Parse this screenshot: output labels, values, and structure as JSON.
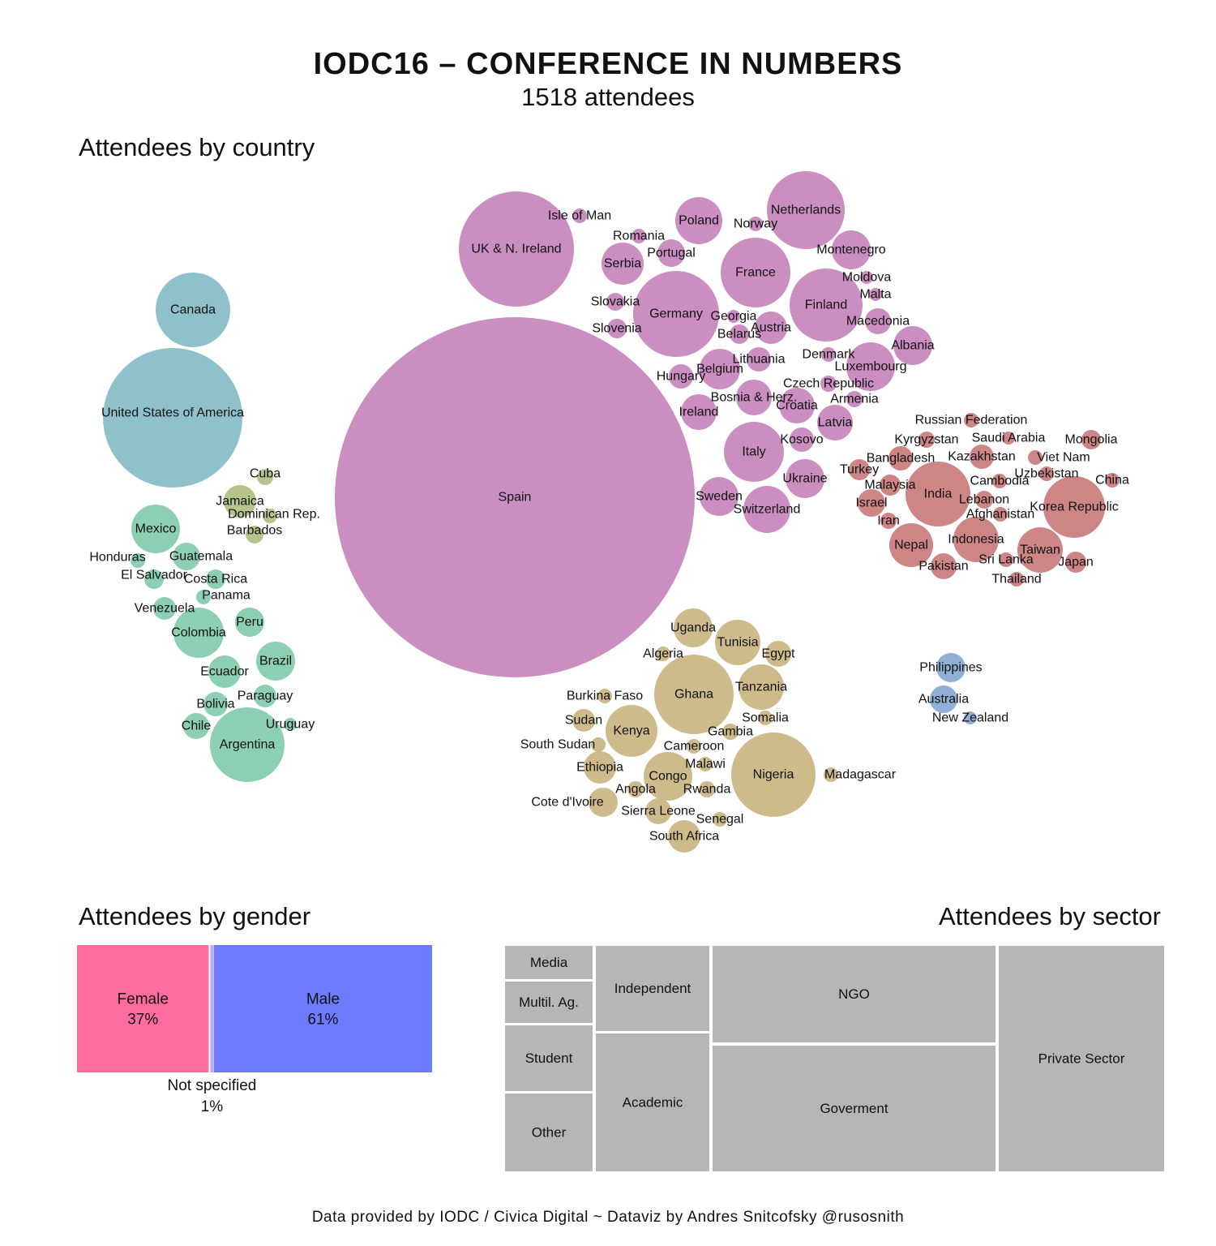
{
  "header": {
    "title": "IODC16 – CONFERENCE IN NUMBERS",
    "subtitle": "1518 attendees"
  },
  "sections": {
    "country": "Attendees by country",
    "gender": "Attendees by gender",
    "sector": "Attendees by sector"
  },
  "footer": "Data provided by IODC / Civica Digital ~ Dataviz by Andres Snitcofsky @rusosnith",
  "colors": {
    "north_america": "#8fc1cb",
    "latin_america": "#8dcfb2",
    "caribbean": "#b5c48a",
    "europe": "#cb8ec0",
    "asia": "#cd8585",
    "africa": "#cebb8b",
    "oceania": "#8fafd4",
    "female": "#fe6ca0",
    "male": "#6d7bfe",
    "not_specified": "#b8a8ff",
    "sector": "#b6b6b6"
  },
  "chart_data": [
    {
      "type": "bubble",
      "title": "Attendees by country",
      "groups": [
        {
          "name": "north_america",
          "countries": [
            "Canada",
            "United States of America"
          ]
        },
        {
          "name": "caribbean",
          "countries": [
            "Cuba",
            "Jamaica",
            "Dominican Rep.",
            "Barbados"
          ]
        },
        {
          "name": "latin_america",
          "countries": [
            "Mexico",
            "Honduras",
            "Guatemala",
            "El Salvador",
            "Costa Rica",
            "Panama",
            "Venezuela",
            "Peru",
            "Colombia",
            "Brazil",
            "Ecuador",
            "Paraguay",
            "Bolivia",
            "Chile",
            "Uruguay",
            "Argentina"
          ]
        },
        {
          "name": "europe",
          "countries": [
            "Spain",
            "UK & N. Ireland",
            "Isle of Man",
            "Romania",
            "Portugal",
            "Serbia",
            "Poland",
            "Norway",
            "Netherlands",
            "Montenegro",
            "France",
            "Moldova",
            "Malta",
            "Finland",
            "Slovakia",
            "Germany",
            "Georgia",
            "Slovenia",
            "Belarus",
            "Austria",
            "Macedonia",
            "Albania",
            "Denmark",
            "Lithuania",
            "Luxembourg",
            "Hungary",
            "Belgium",
            "Czech Republic",
            "Bosnia & Herz.",
            "Armenia",
            "Croatia",
            "Ireland",
            "Latvia",
            "Kosovo",
            "Italy",
            "Ukraine",
            "Sweden",
            "Switzerland"
          ]
        },
        {
          "name": "asia",
          "countries": [
            "Russian Federation",
            "Kyrgyzstan",
            "Saudi Arabia",
            "Mongolia",
            "Bangladesh",
            "Kazakhstan",
            "Viet Nam",
            "Turkey",
            "Uzbekistan",
            "Cambodia",
            "China",
            "Malaysia",
            "India",
            "Lebanon",
            "Israel",
            "Korea Republic",
            "Afghanistan",
            "Iran",
            "Indonesia",
            "Nepal",
            "Taiwan",
            "Sri Lanka",
            "Pakistan",
            "Japan",
            "Thailand"
          ]
        },
        {
          "name": "africa",
          "countries": [
            "Uganda",
            "Tunisia",
            "Algeria",
            "Egypt",
            "Ghana",
            "Tanzania",
            "Burkina Faso",
            "Somalia",
            "Sudan",
            "Kenya",
            "Gambia",
            "South Sudan",
            "Cameroon",
            "Malawi",
            "Ethiopia",
            "Nigeria",
            "Madagascar",
            "Congo",
            "Angola",
            "Rwanda",
            "Cote d'Ivoire",
            "Sierra Leone",
            "Senegal",
            "South Africa"
          ]
        },
        {
          "name": "oceania",
          "countries": [
            "Philippines",
            "Australia",
            "New Zealand"
          ]
        }
      ],
      "relative_size": {
        "Spain": 1000,
        "United States of America": 148,
        "Canada": 43,
        "UK & N. Ireland": 105,
        "Netherlands": 48,
        "Germany": 56,
        "France": 36,
        "Finland": 40,
        "Italy": 28,
        "Nigeria": 51,
        "Ghana": 46,
        "India": 32,
        "Korea Republic": 29,
        "Argentina": 43,
        "Poland": 17,
        "Serbia": 14,
        "Montenegro": 13,
        "Luxembourg": 17,
        "Albania": 12,
        "Belgium": 12,
        "Switzerland": 17,
        "Ukraine": 12,
        "Sweden": 11,
        "Latvia": 10,
        "Croatia": 10,
        "Bosnia & Herz.": 10,
        "Lithuania": 5,
        "Austria": 8,
        "Macedonia": 5,
        "Portugal": 6,
        "Ireland": 9,
        "Kosovo": 5,
        "Hungary": 4,
        "Armenia": 3,
        "Czech Republic": 2,
        "Slovakia": 3,
        "Slovenia": 3,
        "Georgia": 2,
        "Belarus": 3,
        "Norway": 2,
        "Isle of Man": 2,
        "Romania": 2,
        "Moldova": 1,
        "Malta": 2,
        "Denmark": 2,
        "Mexico": 18,
        "Colombia": 19,
        "Brazil": 13,
        "Peru": 7,
        "Ecuador": 8,
        "Paraguay": 4,
        "Bolivia": 5,
        "Chile": 6,
        "Uruguay": 2,
        "Guatemala": 6,
        "Costa Rica": 3,
        "Honduras": 2,
        "El Salvador": 3,
        "Panama": 2,
        "Venezuela": 5,
        "Jamaica": 8,
        "Cuba": 2,
        "Dominican Rep.": 2,
        "Barbados": 3,
        "Indonesia": 15,
        "Taiwan": 15,
        "Nepal": 14,
        "Pakistan": 5,
        "Japan": 3,
        "Sri Lanka": 2,
        "Thailand": 2,
        "Bangladesh": 5,
        "Kazakhstan": 5,
        "Mongolia": 3,
        "Russian Federation": 2,
        "Kyrgyzstan": 2,
        "Saudi Arabia": 2,
        "Viet Nam": 2,
        "Uzbekistan": 2,
        "Cambodia": 2,
        "China": 2,
        "Malaysia": 3,
        "Turkey": 4,
        "Lebanon": 2,
        "Israel": 5,
        "Afghanistan": 2,
        "Iran": 2,
        "Kenya": 22,
        "Congo": 17,
        "Tanzania": 15,
        "Tunisia": 14,
        "Uganda": 11,
        "Ethiopia": 8,
        "Cote d'Ivoire": 7,
        "South Africa": 8,
        "Sierra Leone": 4,
        "Egypt": 5,
        "Sudan": 4,
        "Algeria": 2,
        "Burkina Faso": 2,
        "Somalia": 2,
        "Gambia": 2,
        "South Sudan": 2,
        "Cameroon": 2,
        "Malawi": 2,
        "Angola": 2,
        "Rwanda": 2,
        "Senegal": 2,
        "Madagascar": 2,
        "Philippines": 7,
        "Australia": 6,
        "New Zealand": 2
      }
    },
    {
      "type": "bar",
      "title": "Attendees by gender",
      "categories": [
        "Female",
        "Not specified",
        "Male"
      ],
      "values": [
        37,
        1,
        61
      ],
      "labels": [
        "37%",
        "1%",
        "61%"
      ],
      "unit": "%"
    },
    {
      "type": "treemap",
      "title": "Attendees by sector",
      "categories": [
        "Media",
        "Multil. Ag.",
        "Student",
        "Other",
        "Independent",
        "Academic",
        "NGO",
        "Goverment",
        "Private Sector"
      ]
    }
  ]
}
